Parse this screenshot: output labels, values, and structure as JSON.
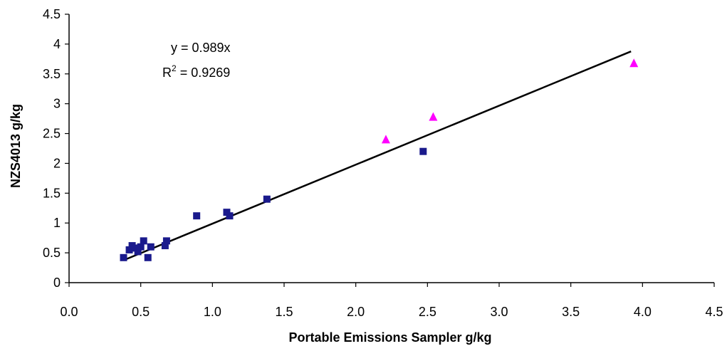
{
  "chart_data": {
    "type": "scatter",
    "xlabel": "Portable Emissions Sampler  g/kg",
    "ylabel": "NZS4013 g/kg",
    "xlim": [
      0,
      4.5
    ],
    "ylim": [
      0,
      4.5
    ],
    "xticks": [
      "0.0",
      "0.5",
      "1.0",
      "1.5",
      "2.0",
      "2.5",
      "3.0",
      "3.5",
      "4.0",
      "4.5"
    ],
    "yticks": [
      "0",
      "0.5",
      "1",
      "1.5",
      "2",
      "2.5",
      "3",
      "3.5",
      "4",
      "4.5"
    ],
    "grid": false,
    "legend": "none",
    "series": [
      {
        "marker": "square",
        "color": "#1a1a8c",
        "points": [
          {
            "x": 0.38,
            "y": 0.42
          },
          {
            "x": 0.42,
            "y": 0.55
          },
          {
            "x": 0.44,
            "y": 0.62
          },
          {
            "x": 0.46,
            "y": 0.58
          },
          {
            "x": 0.48,
            "y": 0.52
          },
          {
            "x": 0.5,
            "y": 0.6
          },
          {
            "x": 0.52,
            "y": 0.7
          },
          {
            "x": 0.55,
            "y": 0.42
          },
          {
            "x": 0.57,
            "y": 0.6
          },
          {
            "x": 0.67,
            "y": 0.62
          },
          {
            "x": 0.68,
            "y": 0.7
          },
          {
            "x": 0.89,
            "y": 1.12
          },
          {
            "x": 1.1,
            "y": 1.18
          },
          {
            "x": 1.12,
            "y": 1.12
          },
          {
            "x": 1.38,
            "y": 1.4
          },
          {
            "x": 2.47,
            "y": 2.2
          }
        ]
      },
      {
        "marker": "triangle",
        "color": "#ff00ff",
        "points": [
          {
            "x": 2.21,
            "y": 2.4
          },
          {
            "x": 2.54,
            "y": 2.78
          },
          {
            "x": 3.94,
            "y": 3.68
          }
        ]
      }
    ],
    "trendline": {
      "slope": 0.989,
      "x_range": [
        0.38,
        3.92
      ],
      "color": "#000000"
    },
    "annotations": {
      "equation": "y = 0.989x",
      "r2_prefix": "R",
      "r2_sup": "2",
      "r2_suffix": " = 0.9269"
    }
  }
}
